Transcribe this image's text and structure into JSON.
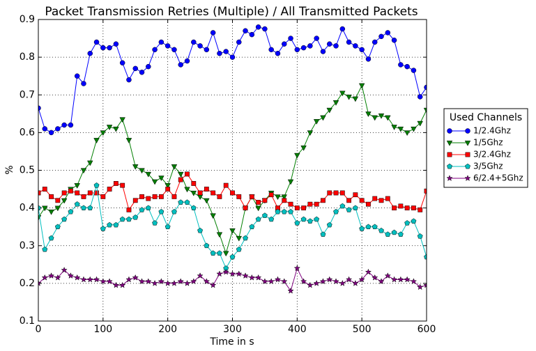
{
  "chart_data": {
    "type": "line",
    "title": "Packet Transmission Retries (Multiple) / All Transmitted Packets",
    "xlabel": "Time in s",
    "ylabel": "%",
    "legend_title": "Used Channels",
    "legend": "right",
    "x": [
      0,
      10,
      20,
      30,
      40,
      50,
      60,
      70,
      80,
      90,
      100,
      110,
      120,
      130,
      140,
      150,
      160,
      170,
      180,
      190,
      200,
      210,
      220,
      230,
      240,
      250,
      260,
      270,
      280,
      290,
      300,
      310,
      320,
      330,
      340,
      350,
      360,
      370,
      380,
      390,
      400,
      410,
      420,
      430,
      440,
      450,
      460,
      470,
      480,
      490,
      500,
      510,
      520,
      530,
      540,
      550,
      560,
      570,
      580,
      590,
      600
    ],
    "series": [
      {
        "name": "1/2.4Ghz",
        "color": "#0000ff",
        "marker": "circle",
        "values": [
          0.665,
          0.61,
          0.6,
          0.61,
          0.62,
          0.62,
          0.75,
          0.73,
          0.81,
          0.84,
          0.825,
          0.825,
          0.835,
          0.785,
          0.74,
          0.77,
          0.76,
          0.775,
          0.82,
          0.84,
          0.83,
          0.82,
          0.78,
          0.79,
          0.84,
          0.83,
          0.82,
          0.865,
          0.81,
          0.815,
          0.8,
          0.84,
          0.87,
          0.86,
          0.88,
          0.875,
          0.82,
          0.81,
          0.835,
          0.85,
          0.82,
          0.825,
          0.83,
          0.85,
          0.815,
          0.835,
          0.83,
          0.875,
          0.84,
          0.83,
          0.82,
          0.795,
          0.84,
          0.855,
          0.865,
          0.845,
          0.78,
          0.775,
          0.765,
          0.695,
          0.72
        ]
      },
      {
        "name": "1/5Ghz",
        "color": "#007f00",
        "marker": "triangle-down",
        "values": [
          0.375,
          0.4,
          0.39,
          0.4,
          0.42,
          0.45,
          0.46,
          0.5,
          0.52,
          0.58,
          0.6,
          0.615,
          0.61,
          0.635,
          0.58,
          0.51,
          0.5,
          0.49,
          0.47,
          0.48,
          0.46,
          0.51,
          0.49,
          0.45,
          0.44,
          0.43,
          0.42,
          0.38,
          0.33,
          0.28,
          0.34,
          0.32,
          0.4,
          0.43,
          0.4,
          0.42,
          0.44,
          0.43,
          0.43,
          0.47,
          0.54,
          0.56,
          0.6,
          0.63,
          0.64,
          0.66,
          0.68,
          0.705,
          0.695,
          0.69,
          0.725,
          0.65,
          0.64,
          0.645,
          0.64,
          0.615,
          0.61,
          0.6,
          0.61,
          0.625,
          0.66
        ]
      },
      {
        "name": "3/2.4Ghz",
        "color": "#ff0000",
        "marker": "square",
        "values": [
          0.44,
          0.45,
          0.43,
          0.42,
          0.44,
          0.445,
          0.44,
          0.43,
          0.44,
          0.44,
          0.43,
          0.45,
          0.465,
          0.46,
          0.395,
          0.42,
          0.43,
          0.425,
          0.43,
          0.43,
          0.45,
          0.43,
          0.475,
          0.49,
          0.465,
          0.44,
          0.45,
          0.44,
          0.43,
          0.46,
          0.44,
          0.43,
          0.4,
          0.43,
          0.415,
          0.42,
          0.435,
          0.4,
          0.42,
          0.41,
          0.4,
          0.4,
          0.41,
          0.41,
          0.42,
          0.44,
          0.44,
          0.44,
          0.42,
          0.435,
          0.42,
          0.41,
          0.425,
          0.42,
          0.425,
          0.4,
          0.405,
          0.4,
          0.4,
          0.395,
          0.445
        ]
      },
      {
        "name": "3/5Ghz",
        "color": "#00bfbf",
        "marker": "pentagon",
        "values": [
          0.4,
          0.29,
          0.32,
          0.35,
          0.37,
          0.39,
          0.41,
          0.4,
          0.4,
          0.46,
          0.345,
          0.355,
          0.355,
          0.37,
          0.37,
          0.375,
          0.395,
          0.4,
          0.36,
          0.39,
          0.35,
          0.39,
          0.415,
          0.415,
          0.4,
          0.34,
          0.3,
          0.28,
          0.28,
          0.24,
          0.27,
          0.29,
          0.32,
          0.35,
          0.37,
          0.38,
          0.37,
          0.39,
          0.39,
          0.39,
          0.36,
          0.37,
          0.365,
          0.37,
          0.33,
          0.355,
          0.39,
          0.405,
          0.395,
          0.4,
          0.345,
          0.35,
          0.35,
          0.34,
          0.33,
          0.335,
          0.33,
          0.36,
          0.365,
          0.325,
          0.27
        ]
      },
      {
        "name": "6/2.4+5Ghz",
        "color": "#800080",
        "marker": "star",
        "values": [
          0.2,
          0.215,
          0.22,
          0.215,
          0.235,
          0.22,
          0.215,
          0.21,
          0.21,
          0.21,
          0.205,
          0.205,
          0.195,
          0.195,
          0.21,
          0.215,
          0.205,
          0.205,
          0.2,
          0.205,
          0.2,
          0.2,
          0.205,
          0.2,
          0.205,
          0.22,
          0.205,
          0.195,
          0.225,
          0.23,
          0.225,
          0.225,
          0.22,
          0.215,
          0.215,
          0.205,
          0.205,
          0.21,
          0.205,
          0.18,
          0.24,
          0.205,
          0.195,
          0.2,
          0.205,
          0.21,
          0.205,
          0.2,
          0.21,
          0.2,
          0.21,
          0.23,
          0.215,
          0.205,
          0.22,
          0.21,
          0.21,
          0.21,
          0.205,
          0.19,
          0.195
        ]
      }
    ],
    "xlim": [
      0,
      600
    ],
    "xticks": [
      0,
      100,
      200,
      300,
      400,
      500,
      600
    ],
    "ylim": [
      0.1,
      0.9
    ],
    "yticks": [
      0.1,
      0.2,
      0.3,
      0.4,
      0.5,
      0.6,
      0.7,
      0.8,
      0.9
    ],
    "grid": true
  }
}
